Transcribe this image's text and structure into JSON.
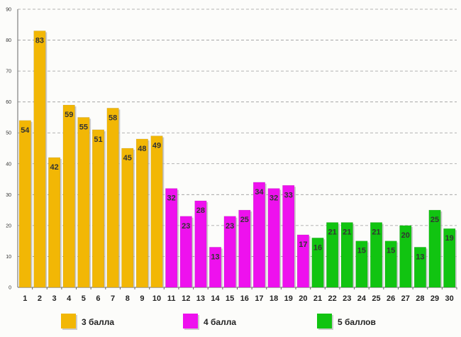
{
  "chart_data": {
    "type": "bar",
    "title": "",
    "xlabel": "",
    "ylabel": "",
    "ylim": [
      0,
      90
    ],
    "yticks": [
      0,
      10,
      20,
      30,
      40,
      50,
      60,
      70,
      80,
      90
    ],
    "grid": true,
    "categories": [
      "1",
      "2",
      "3",
      "4",
      "5",
      "6",
      "7",
      "8",
      "9",
      "10",
      "11",
      "12",
      "13",
      "14",
      "15",
      "16",
      "17",
      "18",
      "19",
      "20",
      "21",
      "22",
      "23",
      "24",
      "25",
      "26",
      "27",
      "28",
      "29",
      "30"
    ],
    "values": [
      54,
      83,
      42,
      59,
      55,
      51,
      58,
      45,
      48,
      49,
      32,
      23,
      28,
      13,
      23,
      25,
      34,
      32,
      33,
      17,
      16,
      21,
      21,
      15,
      21,
      15,
      20,
      13,
      25,
      19
    ],
    "groups": [
      {
        "name": "3 балла",
        "color": "#f2b705",
        "range": [
          1,
          10
        ]
      },
      {
        "name": "4 балла",
        "color": "#ee11ee",
        "range": [
          11,
          20
        ]
      },
      {
        "name": "5 баллов",
        "color": "#11c411",
        "range": [
          21,
          30
        ]
      }
    ],
    "legend": "bottom"
  }
}
